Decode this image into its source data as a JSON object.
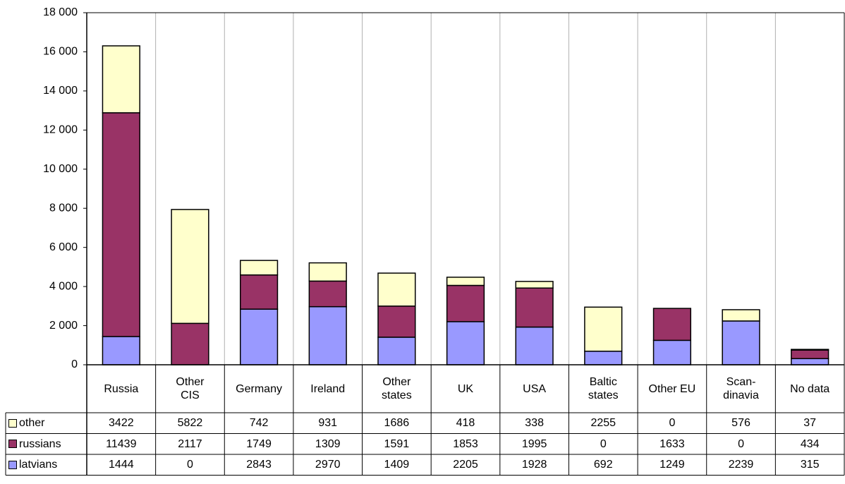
{
  "chart_data": {
    "type": "bar",
    "stacked": true,
    "categories": [
      "Russia",
      "Other\nCIS",
      "Germany",
      "Ireland",
      "Other\nstates",
      "UK",
      "USA",
      "Baltic\nstates",
      "Other EU",
      "Scan-\ndinavia",
      "No data"
    ],
    "series": [
      {
        "name": "latvians",
        "color": "#9999ff",
        "values": [
          1444,
          0,
          2843,
          2970,
          1409,
          2205,
          1928,
          692,
          1249,
          2239,
          315
        ]
      },
      {
        "name": "russians",
        "color": "#993366",
        "values": [
          11439,
          2117,
          1749,
          1309,
          1591,
          1853,
          1995,
          0,
          1633,
          0,
          434
        ]
      },
      {
        "name": "other",
        "color": "#ffffcc",
        "values": [
          3422,
          5822,
          742,
          931,
          1686,
          418,
          338,
          2255,
          0,
          576,
          37
        ]
      }
    ],
    "ylim": [
      0,
      18000
    ],
    "yticks": [
      0,
      {
        "value": 2000,
        "label": "2 000"
      },
      {
        "value": 4000,
        "label": "4 000"
      },
      {
        "value": 6000,
        "label": "6 000"
      },
      {
        "value": 8000,
        "label": "8 000"
      },
      {
        "value": 10000,
        "label": "10 000"
      },
      {
        "value": 12000,
        "label": "12 000"
      },
      {
        "value": 14000,
        "label": "14 000"
      },
      {
        "value": 16000,
        "label": "16 000"
      },
      {
        "value": 18000,
        "label": "18 000"
      }
    ],
    "grid": "vertical"
  }
}
